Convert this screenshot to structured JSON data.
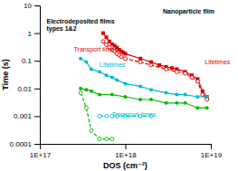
{
  "chart_data": {
    "type": "line",
    "log": true,
    "grid": false,
    "xlabel": "DOS (cm⁻³)",
    "ylabel": "Time (s)",
    "xlim": [
      1e+17,
      1e+19
    ],
    "ylim": [
      0.0001,
      10
    ],
    "xticks": [
      {
        "value": 1e+17,
        "label": "1E+17"
      },
      {
        "value": 1e+18,
        "label": "1E+18"
      },
      {
        "value": 1e+19,
        "label": "1E+19"
      }
    ],
    "yticks": [
      0.0001,
      0.001,
      0.01,
      0.1,
      1,
      10
    ],
    "series": [
      {
        "color": "#dd0000",
        "line_style": "solid",
        "marker": "square",
        "x": [
          5.5e+17,
          6e+17,
          6.5e+17,
          7e+17,
          7.5e+17,
          8e+17,
          8.5e+17,
          9e+17,
          9.5e+17,
          1e+18,
          1.5e+18,
          2e+18,
          2.5e+18,
          3e+18,
          3.5e+18,
          4e+18,
          5e+18,
          6e+18,
          7e+18,
          8e+18,
          9e+18
        ],
        "values": [
          1.0,
          0.7,
          0.5,
          0.4,
          0.35,
          0.3,
          0.25,
          0.22,
          0.2,
          0.18,
          0.12,
          0.09,
          0.07,
          0.06,
          0.055,
          0.05,
          0.04,
          0.03,
          0.022,
          0.008,
          0.005
        ]
      },
      {
        "color": "#dd0000",
        "line_style": "dashed",
        "marker": "open-circle",
        "x": [
          5.5e+17,
          6e+17,
          6.5e+17,
          7e+17,
          7.5e+17,
          8e+17,
          8.5e+17,
          9e+17,
          1e+18,
          1.5e+18,
          2e+18,
          3e+18,
          4e+18,
          5e+18,
          6e+18,
          7e+18,
          8e+18,
          9e+18
        ],
        "values": [
          0.5,
          0.38,
          0.3,
          0.25,
          0.22,
          0.18,
          0.16,
          0.14,
          0.12,
          0.09,
          0.07,
          0.05,
          0.04,
          0.035,
          0.025,
          0.018,
          0.006,
          0.004
        ]
      },
      {
        "color": "#00bbcc",
        "line_style": "solid",
        "marker": "circle",
        "x": [
          3e+17,
          3.5e+17,
          4e+17,
          5e+17,
          6e+17,
          7e+17,
          8e+17,
          1e+18,
          1.5e+18,
          2e+18,
          3e+18,
          4e+18,
          5e+18,
          7e+18,
          9e+18
        ],
        "values": [
          0.12,
          0.09,
          0.05,
          0.04,
          0.03,
          0.025,
          0.02,
          0.015,
          0.012,
          0.009,
          0.007,
          0.006,
          0.006,
          0.005,
          0.005
        ]
      },
      {
        "color": "#00bb00",
        "line_style": "solid",
        "marker": "circle",
        "x": [
          3e+17,
          3.5e+17,
          4e+17,
          5e+17,
          7e+17,
          1e+18,
          1.5e+18,
          2e+18,
          3e+18,
          4e+18,
          5e+18,
          7e+18,
          9e+18
        ],
        "values": [
          0.01,
          0.009,
          0.008,
          0.006,
          0.006,
          0.005,
          0.004,
          0.004,
          0.003,
          0.003,
          0.003,
          0.002,
          0.002
        ]
      },
      {
        "color": "#00bbcc",
        "line_style": "dashed",
        "marker": "open-circle",
        "x": [
          5e+17,
          6e+17,
          7e+17,
          8e+17,
          1e+18,
          1.5e+18,
          2e+18
        ],
        "values": [
          0.001,
          0.001,
          0.001,
          0.001,
          0.001,
          0.001,
          0.001
        ]
      },
      {
        "color": "#00bb00",
        "line_style": "dashed",
        "marker": "open-circle",
        "x": [
          3e+17,
          3.5e+17,
          4e+17,
          5e+17,
          6e+17,
          7e+17
        ],
        "values": [
          0.007,
          0.002,
          0.0003,
          0.00015,
          0.00015,
          0.00015
        ]
      }
    ],
    "annotations": [
      {
        "text": "Electrodeposited films\ntypes 1&2",
        "x": 1.2e+17,
        "y": 3.5,
        "color": "#000000"
      },
      {
        "text": "Nanoparticle film",
        "x": 5.5e+18,
        "y": 8,
        "color": "#000000"
      },
      {
        "text": "Lifetimes",
        "x": 8.5e+18,
        "y": 0.09,
        "color": "#dd0000"
      },
      {
        "text": "Transport times",
        "x": 2.5e+17,
        "y": 0.2,
        "color": "#dd0000"
      },
      {
        "text": "Lifetimes",
        "x": 5e+17,
        "y": 0.055,
        "color": "#00bbcc"
      },
      {
        "text": "Transport times",
        "x": 7e+17,
        "y": 0.00085,
        "color": "#00bbcc"
      }
    ]
  }
}
